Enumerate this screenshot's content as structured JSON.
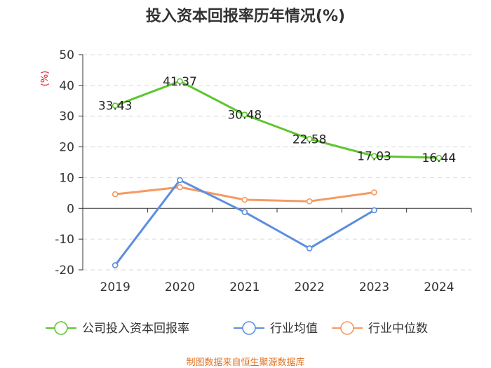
{
  "chart_data": {
    "type": "line",
    "title": "投入资本回报率历年情况(%)",
    "ylabel": "(%)",
    "xlabel": "",
    "categories": [
      "2019",
      "2020",
      "2021",
      "2022",
      "2023",
      "2024"
    ],
    "ylim": [
      -20,
      50
    ],
    "yticks": [
      50,
      40,
      30,
      20,
      10,
      0,
      -10,
      -20
    ],
    "grid": true,
    "legend_position": "bottom",
    "series": [
      {
        "name": "公司投入资本回报率",
        "color": "#5ec62e",
        "values": [
          33.43,
          41.37,
          30.48,
          22.58,
          17.03,
          16.44
        ],
        "labels": [
          "33.43",
          "41.37",
          "30.48",
          "22.58",
          "17.03",
          "16.44"
        ]
      },
      {
        "name": "行业均值",
        "color": "#5b8ee0",
        "values": [
          -18.5,
          9.2,
          -1.2,
          -13.0,
          -0.6,
          null
        ]
      },
      {
        "name": "行业中位数",
        "color": "#f59a63",
        "values": [
          4.6,
          6.9,
          2.8,
          2.3,
          5.2,
          null
        ]
      }
    ],
    "source": "制图数据来自恒生聚源数据库"
  }
}
